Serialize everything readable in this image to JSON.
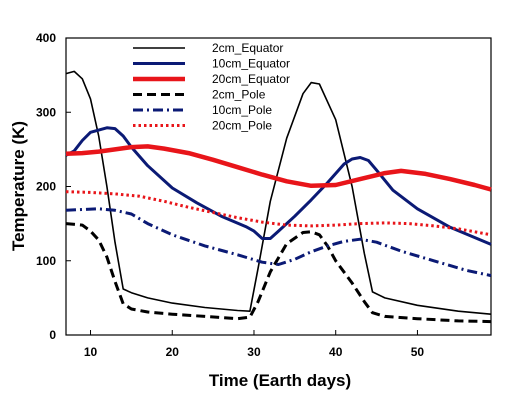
{
  "chart_data": {
    "type": "line",
    "xlabel": "Time (Earth days)",
    "ylabel": "Temperature (K)",
    "xlim": [
      7,
      59
    ],
    "ylim": [
      0,
      400
    ],
    "xticks": [
      10,
      20,
      30,
      40,
      50
    ],
    "yticks": [
      0,
      100,
      200,
      300,
      400
    ],
    "legend_position": "top-center",
    "series": [
      {
        "name": "2cm_Equator",
        "color": "#000000",
        "style": "solid",
        "weight": "thin",
        "points": [
          [
            7,
            352
          ],
          [
            8,
            355
          ],
          [
            9,
            345
          ],
          [
            10,
            318
          ],
          [
            11,
            268
          ],
          [
            12,
            200
          ],
          [
            13,
            125
          ],
          [
            14,
            62
          ],
          [
            15,
            57
          ],
          [
            17,
            50
          ],
          [
            20,
            43
          ],
          [
            24,
            37
          ],
          [
            28,
            33
          ],
          [
            29.5,
            32
          ],
          [
            30.5,
            90
          ],
          [
            32,
            180
          ],
          [
            34,
            265
          ],
          [
            36,
            325
          ],
          [
            37,
            340
          ],
          [
            38,
            338
          ],
          [
            40,
            290
          ],
          [
            42,
            200
          ],
          [
            43.5,
            110
          ],
          [
            44.5,
            58
          ],
          [
            46,
            50
          ],
          [
            50,
            40
          ],
          [
            55,
            32
          ],
          [
            59,
            28
          ]
        ]
      },
      {
        "name": "10cm_Equator",
        "color": "#0b1a75",
        "style": "solid",
        "weight": "medium",
        "points": [
          [
            7,
            242
          ],
          [
            8,
            248
          ],
          [
            9,
            262
          ],
          [
            10,
            273
          ],
          [
            12,
            279
          ],
          [
            13,
            278
          ],
          [
            14,
            268
          ],
          [
            15,
            253
          ],
          [
            17,
            228
          ],
          [
            20,
            198
          ],
          [
            23,
            178
          ],
          [
            26,
            160
          ],
          [
            29,
            146
          ],
          [
            30,
            140
          ],
          [
            31,
            130
          ],
          [
            32,
            130
          ],
          [
            33,
            140
          ],
          [
            35,
            160
          ],
          [
            37,
            182
          ],
          [
            39,
            205
          ],
          [
            41,
            230
          ],
          [
            42,
            237
          ],
          [
            43,
            239
          ],
          [
            44,
            235
          ],
          [
            45,
            222
          ],
          [
            47,
            195
          ],
          [
            50,
            170
          ],
          [
            54,
            145
          ],
          [
            59,
            122
          ]
        ]
      },
      {
        "name": "20cm_Equator",
        "color": "#e8151a",
        "style": "solid",
        "weight": "thick",
        "points": [
          [
            7,
            244
          ],
          [
            9,
            245
          ],
          [
            11,
            247
          ],
          [
            13,
            250
          ],
          [
            15,
            253
          ],
          [
            17,
            254
          ],
          [
            19,
            251
          ],
          [
            22,
            245
          ],
          [
            25,
            236
          ],
          [
            28,
            226
          ],
          [
            31,
            216
          ],
          [
            34,
            207
          ],
          [
            37,
            201
          ],
          [
            40,
            202
          ],
          [
            43,
            210
          ],
          [
            46,
            218
          ],
          [
            48,
            221
          ],
          [
            51,
            217
          ],
          [
            54,
            210
          ],
          [
            57,
            202
          ],
          [
            59,
            196
          ]
        ]
      },
      {
        "name": "2cm_Pole",
        "color": "#000000",
        "style": "dashed",
        "weight": "medium",
        "points": [
          [
            7,
            150
          ],
          [
            9,
            148
          ],
          [
            10,
            140
          ],
          [
            11,
            128
          ],
          [
            12,
            105
          ],
          [
            13,
            72
          ],
          [
            14,
            42
          ],
          [
            15,
            35
          ],
          [
            17,
            31
          ],
          [
            20,
            28
          ],
          [
            24,
            25
          ],
          [
            28,
            22
          ],
          [
            29.5,
            24
          ],
          [
            30.5,
            45
          ],
          [
            32,
            85
          ],
          [
            34,
            123
          ],
          [
            36,
            138
          ],
          [
            37,
            139
          ],
          [
            38,
            135
          ],
          [
            39,
            120
          ],
          [
            40,
            100
          ],
          [
            42,
            70
          ],
          [
            43.5,
            45
          ],
          [
            44.5,
            30
          ],
          [
            46,
            25
          ],
          [
            50,
            22
          ],
          [
            55,
            19
          ],
          [
            59,
            18
          ]
        ]
      },
      {
        "name": "10cm_Pole",
        "color": "#0b1a75",
        "style": "dashdot",
        "weight": "medium",
        "points": [
          [
            7,
            168
          ],
          [
            9,
            169
          ],
          [
            11,
            170
          ],
          [
            13,
            168
          ],
          [
            15,
            163
          ],
          [
            17,
            150
          ],
          [
            20,
            135
          ],
          [
            24,
            120
          ],
          [
            28,
            108
          ],
          [
            31,
            98
          ],
          [
            33,
            95
          ],
          [
            35,
            102
          ],
          [
            37,
            112
          ],
          [
            39,
            120
          ],
          [
            41,
            126
          ],
          [
            43,
            129
          ],
          [
            45,
            125
          ],
          [
            48,
            113
          ],
          [
            52,
            100
          ],
          [
            56,
            87
          ],
          [
            59,
            80
          ]
        ]
      },
      {
        "name": "20cm_Pole",
        "color": "#e8151a",
        "style": "dotted",
        "weight": "medium",
        "points": [
          [
            7,
            193
          ],
          [
            10,
            192
          ],
          [
            13,
            190
          ],
          [
            16,
            187
          ],
          [
            19,
            180
          ],
          [
            22,
            172
          ],
          [
            25,
            165
          ],
          [
            28,
            158
          ],
          [
            31,
            152
          ],
          [
            34,
            148
          ],
          [
            37,
            147
          ],
          [
            40,
            148
          ],
          [
            43,
            150
          ],
          [
            46,
            151
          ],
          [
            49,
            150
          ],
          [
            52,
            147
          ],
          [
            55,
            143
          ],
          [
            59,
            135
          ]
        ]
      }
    ]
  }
}
